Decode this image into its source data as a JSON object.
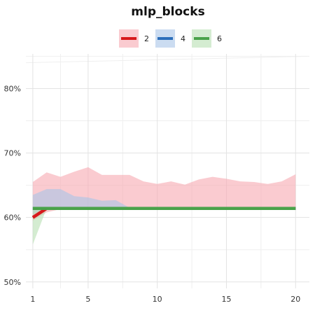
{
  "chart_data": {
    "type": "line",
    "title": "mlp_blocks",
    "xlabel": "",
    "ylabel": "",
    "x": [
      1,
      2,
      3,
      4,
      5,
      6,
      7,
      8,
      9,
      10,
      11,
      12,
      13,
      14,
      15,
      16,
      17,
      18,
      19,
      20
    ],
    "xlim": [
      0.5,
      21
    ],
    "ylim": [
      49,
      87
    ],
    "x_ticks": [
      1,
      5,
      10,
      15,
      20
    ],
    "x_tick_labels": [
      "1",
      "5",
      "10",
      "15",
      "20"
    ],
    "y_ticks": [
      50,
      60,
      70,
      80
    ],
    "y_tick_labels": [
      "50%",
      "60%",
      "70%",
      "80%"
    ],
    "grid": true,
    "legend_position": "top-center",
    "series": [
      {
        "name": "2",
        "color": "#d7191c",
        "band_color": "#f7a8b0",
        "values": [
          60.0,
          61.4,
          61.4,
          61.4,
          61.4,
          61.4,
          61.4,
          61.4,
          61.4,
          61.4,
          61.4,
          61.4,
          61.4,
          61.4,
          61.4,
          61.4,
          61.4,
          61.4,
          61.4,
          61.4
        ],
        "upper": [
          65.5,
          67.0,
          66.3,
          67.1,
          67.8,
          66.6,
          66.6,
          66.6,
          65.6,
          65.2,
          65.6,
          65.1,
          65.9,
          66.3,
          66.0,
          65.6,
          65.5,
          65.2,
          65.6,
          66.7
        ],
        "lower": [
          59.5,
          60.8,
          61.3,
          61.3,
          61.3,
          61.3,
          61.3,
          61.3,
          61.3,
          61.3,
          61.3,
          61.3,
          61.3,
          61.3,
          61.3,
          61.3,
          61.3,
          61.3,
          61.3,
          61.3
        ]
      },
      {
        "name": "4",
        "color": "#2c6fbb",
        "band_color": "#a9c4e8",
        "values": [
          61.4,
          61.4,
          61.4,
          61.4,
          61.4,
          61.4,
          61.4,
          61.4,
          61.4,
          61.4,
          61.4,
          61.4,
          61.4,
          61.4,
          61.4,
          61.4,
          61.4,
          61.4,
          61.4,
          61.4
        ],
        "upper": [
          63.5,
          64.4,
          64.4,
          63.3,
          63.1,
          62.6,
          62.7,
          61.5,
          61.4,
          61.4,
          61.4,
          61.4,
          61.4,
          61.4,
          61.4,
          61.4,
          61.4,
          61.4,
          61.4,
          61.4
        ],
        "lower": [
          60.5,
          61.4,
          61.4,
          61.4,
          61.4,
          61.4,
          61.4,
          61.4,
          61.4,
          61.4,
          61.4,
          61.4,
          61.4,
          61.4,
          61.4,
          61.4,
          61.4,
          61.4,
          61.4,
          61.4
        ]
      },
      {
        "name": "6",
        "color": "#4aa24a",
        "band_color": "#b7e0b3",
        "values": [
          61.4,
          61.4,
          61.4,
          61.4,
          61.4,
          61.4,
          61.4,
          61.4,
          61.4,
          61.4,
          61.4,
          61.4,
          61.4,
          61.4,
          61.4,
          61.4,
          61.4,
          61.4,
          61.4,
          61.4
        ],
        "upper": [
          61.4,
          61.4,
          61.4,
          61.4,
          61.4,
          61.4,
          61.4,
          61.4,
          61.4,
          61.4,
          61.4,
          61.4,
          61.4,
          61.4,
          61.4,
          61.4,
          61.4,
          61.4,
          61.4,
          61.4
        ],
        "lower": [
          55.8,
          61.4,
          61.4,
          61.4,
          61.4,
          61.4,
          61.4,
          61.4,
          61.4,
          61.4,
          61.4,
          61.4,
          61.4,
          61.4,
          61.4,
          61.4,
          61.4,
          61.4,
          61.4,
          61.4
        ]
      }
    ]
  }
}
